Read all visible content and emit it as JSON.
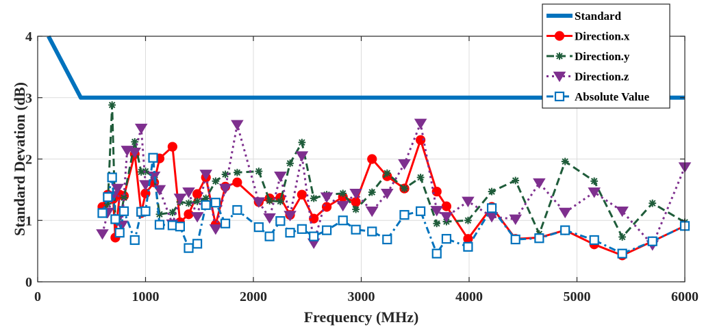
{
  "chart_data": {
    "type": "line",
    "title": "",
    "xlabel": "Frequency (MHz)",
    "ylabel": "Standard Devation (dB)",
    "xlim": [
      0,
      6000
    ],
    "ylim": [
      0,
      4
    ],
    "xticks": [
      0,
      1000,
      2000,
      3000,
      4000,
      5000,
      6000
    ],
    "yticks": [
      0,
      1,
      2,
      3,
      4
    ],
    "grid": true,
    "legend_position": "top-right",
    "series": [
      {
        "name": "Standard",
        "color": "#0072bd",
        "style": "solid-thick",
        "marker": "none",
        "x": [
          100,
          400,
          6000
        ],
        "y": [
          4.0,
          3.0,
          3.0
        ]
      },
      {
        "name": "Direction.x",
        "color": "#ff0000",
        "style": "solid",
        "marker": "circle",
        "x": [
          600,
          650,
          700,
          720,
          760,
          800,
          900,
          960,
          1000,
          1080,
          1130,
          1250,
          1320,
          1400,
          1480,
          1560,
          1650,
          1740,
          1850,
          2050,
          2150,
          2250,
          2340,
          2450,
          2560,
          2680,
          2830,
          2950,
          3100,
          3240,
          3400,
          3550,
          3700,
          3790,
          3990,
          4210,
          4430,
          4650,
          4890,
          5160,
          5420,
          5700,
          6000
        ],
        "y": [
          1.22,
          1.42,
          1.35,
          0.72,
          1.42,
          1.4,
          2.08,
          1.12,
          1.44,
          1.62,
          2.01,
          2.2,
          0.97,
          1.1,
          1.43,
          1.7,
          0.93,
          1.55,
          1.62,
          1.3,
          1.36,
          1.37,
          1.09,
          1.42,
          1.03,
          1.22,
          1.38,
          1.3,
          2.0,
          1.72,
          1.52,
          2.31,
          1.47,
          1.23,
          0.7,
          1.22,
          0.7,
          0.72,
          0.84,
          0.61,
          0.43,
          0.66,
          0.91
        ]
      },
      {
        "name": "Direction.y",
        "color": "#1f5c3a",
        "style": "dashed",
        "marker": "star",
        "x": [
          600,
          650,
          690,
          720,
          760,
          800,
          900,
          960,
          1000,
          1080,
          1130,
          1250,
          1320,
          1400,
          1480,
          1560,
          1650,
          1740,
          1850,
          2050,
          2150,
          2250,
          2340,
          2450,
          2560,
          2680,
          2830,
          2950,
          3100,
          3240,
          3400,
          3550,
          3700,
          3790,
          3990,
          4210,
          4430,
          4650,
          4890,
          5160,
          5420,
          5700,
          6000
        ],
        "y": [
          1.13,
          1.27,
          2.88,
          1.0,
          0.96,
          1.37,
          2.28,
          1.79,
          1.8,
          1.7,
          1.1,
          1.13,
          1.3,
          1.28,
          1.31,
          1.36,
          1.64,
          1.75,
          1.78,
          1.8,
          1.32,
          1.31,
          1.93,
          2.27,
          1.36,
          1.42,
          1.44,
          1.18,
          1.46,
          1.77,
          1.52,
          1.7,
          0.95,
          0.98,
          1.0,
          1.47,
          1.65,
          0.78,
          1.96,
          1.64,
          0.73,
          1.28,
          0.97
        ]
      },
      {
        "name": "Direction.z",
        "color": "#7e2f8e",
        "style": "dotted",
        "marker": "triangle-down",
        "x": [
          600,
          650,
          700,
          740,
          780,
          830,
          900,
          960,
          1000,
          1080,
          1130,
          1250,
          1320,
          1400,
          1480,
          1560,
          1650,
          1740,
          1850,
          2050,
          2150,
          2250,
          2340,
          2450,
          2560,
          2680,
          2830,
          2950,
          3100,
          3240,
          3400,
          3550,
          3700,
          3790,
          3990,
          4210,
          4430,
          4650,
          4890,
          5160,
          5420,
          5700,
          6000
        ],
        "y": [
          0.78,
          1.13,
          1.4,
          1.52,
          0.92,
          2.14,
          2.11,
          2.5,
          1.58,
          1.72,
          1.5,
          0.94,
          1.36,
          1.46,
          1.06,
          1.75,
          0.86,
          1.52,
          2.56,
          1.3,
          1.04,
          1.72,
          1.08,
          2.05,
          0.63,
          1.38,
          1.24,
          1.44,
          1.15,
          1.44,
          1.92,
          2.58,
          1.16,
          1.06,
          1.31,
          1.06,
          1.02,
          1.61,
          1.13,
          1.46,
          1.15,
          0.6,
          1.87
        ]
      },
      {
        "name": "Absolute Value",
        "color": "#0072bd",
        "style": "dash-dot",
        "marker": "square",
        "x": [
          600,
          650,
          690,
          720,
          760,
          800,
          900,
          960,
          1000,
          1070,
          1130,
          1250,
          1320,
          1400,
          1480,
          1560,
          1650,
          1740,
          1850,
          2050,
          2150,
          2250,
          2340,
          2450,
          2560,
          2680,
          2830,
          2950,
          3100,
          3240,
          3400,
          3550,
          3700,
          3790,
          3990,
          4210,
          4430,
          4650,
          4890,
          5160,
          5420,
          5700,
          6000
        ],
        "y": [
          1.12,
          1.38,
          1.7,
          1.02,
          0.8,
          1.15,
          0.68,
          1.14,
          1.15,
          2.02,
          0.93,
          0.92,
          0.9,
          0.55,
          0.62,
          1.25,
          1.29,
          0.95,
          1.17,
          0.89,
          0.74,
          0.99,
          0.8,
          0.86,
          0.74,
          0.84,
          1.0,
          0.85,
          0.82,
          0.69,
          1.09,
          1.15,
          0.46,
          0.7,
          0.57,
          1.2,
          0.69,
          0.71,
          0.84,
          0.68,
          0.46,
          0.66,
          0.91
        ]
      }
    ]
  }
}
